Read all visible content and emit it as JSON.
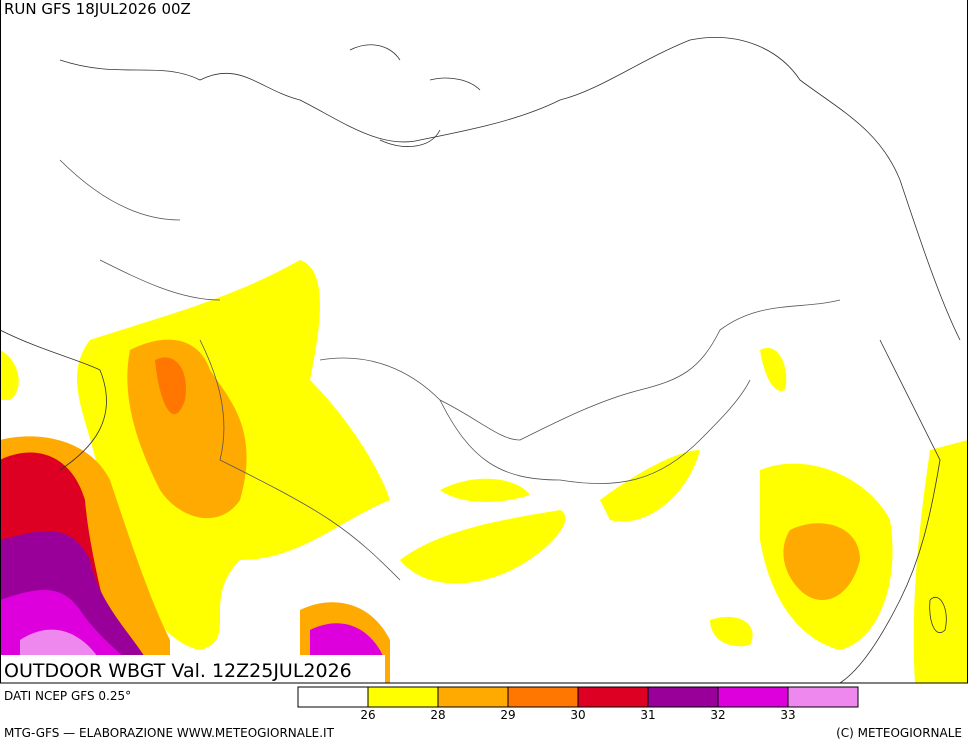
{
  "header": {
    "run": "RUN GFS 18JUL2026 00Z"
  },
  "map": {
    "title": "OUTDOOR WBGT Val. 12Z25JUL2026"
  },
  "legend": {
    "source": "DATI NCEP GFS 0.25°",
    "colors": [
      "#ffffff",
      "#ffff00",
      "#ffaa00",
      "#ff7700",
      "#dd0022",
      "#990099",
      "#dd00dd",
      "#ee88ee"
    ],
    "ticks": [
      "26",
      "28",
      "29",
      "30",
      "31",
      "32",
      "33"
    ]
  },
  "footer": {
    "left": "MTG-GFS — ELABORAZIONE WWW.METEOGIORNALE.IT",
    "right": "(C) METEOGIORNALE"
  }
}
